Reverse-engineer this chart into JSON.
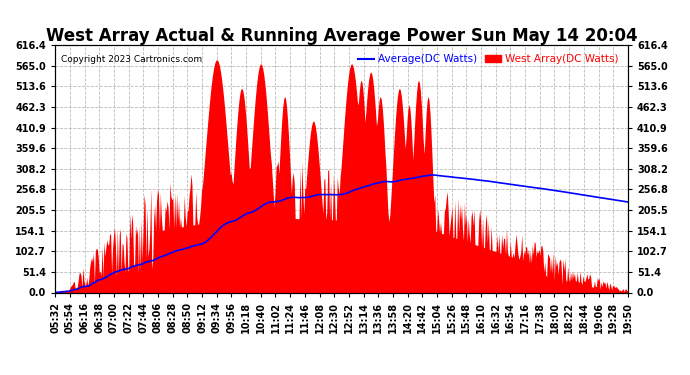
{
  "title": "West Array Actual & Running Average Power Sun May 14 20:04",
  "copyright": "Copyright 2023 Cartronics.com",
  "legend_avg": "Average(DC Watts)",
  "legend_west": "West Array(DC Watts)",
  "legend_avg_color": "blue",
  "legend_west_color": "red",
  "ymin": 0.0,
  "ymax": 616.4,
  "yticks": [
    0.0,
    51.4,
    102.7,
    154.1,
    205.5,
    256.8,
    308.2,
    359.6,
    410.9,
    462.3,
    513.6,
    565.0,
    616.4
  ],
  "bg_color": "#ffffff",
  "plot_bg_color": "#ffffff",
  "grid_color": "#bbbbbb",
  "fill_color": "red",
  "avg_line_color": "blue",
  "title_fontsize": 12,
  "tick_fontsize": 7,
  "xtick_labels": [
    "05:32",
    "05:54",
    "06:16",
    "06:38",
    "07:00",
    "07:22",
    "07:44",
    "08:06",
    "08:28",
    "08:50",
    "09:12",
    "09:34",
    "09:56",
    "10:18",
    "10:40",
    "11:02",
    "11:24",
    "11:46",
    "12:08",
    "12:30",
    "12:52",
    "13:14",
    "13:36",
    "13:58",
    "14:20",
    "14:42",
    "15:04",
    "15:26",
    "15:48",
    "16:10",
    "16:32",
    "16:54",
    "17:16",
    "17:38",
    "18:00",
    "18:22",
    "18:44",
    "19:06",
    "19:28",
    "19:50"
  ]
}
